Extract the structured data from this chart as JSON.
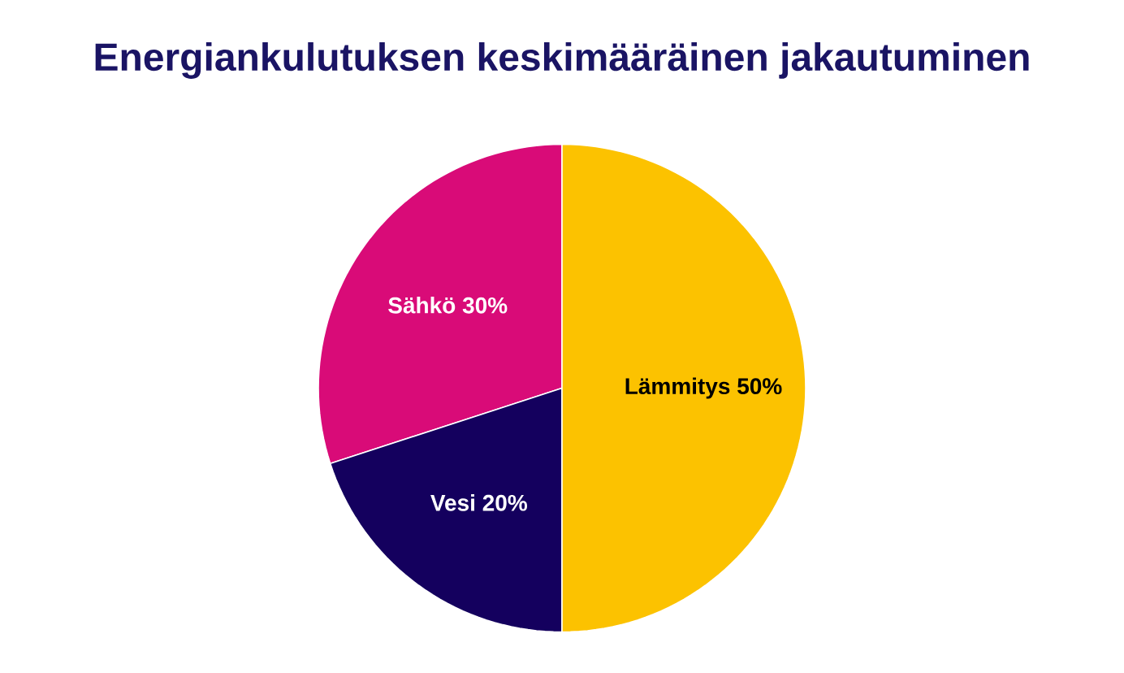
{
  "chart_data": {
    "type": "pie",
    "title": "Energiankulutuksen keskimääräinen jakautuminen",
    "categories": [
      "Lämmitys",
      "Vesi",
      "Sähkö"
    ],
    "values": [
      50,
      20,
      30
    ],
    "value_labels": [
      "50%",
      "20%",
      "30%"
    ],
    "colors": [
      "#fcc200",
      "#14005e",
      "#d90b78"
    ]
  }
}
